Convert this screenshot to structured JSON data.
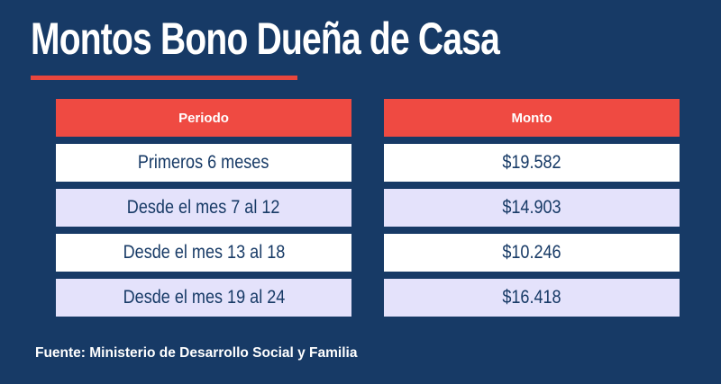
{
  "title": "Montos Bono Dueña de Casa",
  "table": {
    "headers": {
      "period": "Periodo",
      "amount": "Monto"
    },
    "rows": [
      {
        "period": "Primeros 6 meses",
        "amount": "$19.582"
      },
      {
        "period": "Desde el mes 7 al 12",
        "amount": "$14.903"
      },
      {
        "period": "Desde el mes 13 al 18",
        "amount": "$10.246"
      },
      {
        "period": "Desde el mes 19 al 24",
        "amount": "$16.418"
      }
    ]
  },
  "source": "Fuente: Ministerio de Desarrollo Social y Familia",
  "colors": {
    "background": "#173a66",
    "accent_red": "#ef4a42",
    "row_white": "#ffffff",
    "row_lilac": "#e4e2fb",
    "text_dark": "#173a66"
  }
}
